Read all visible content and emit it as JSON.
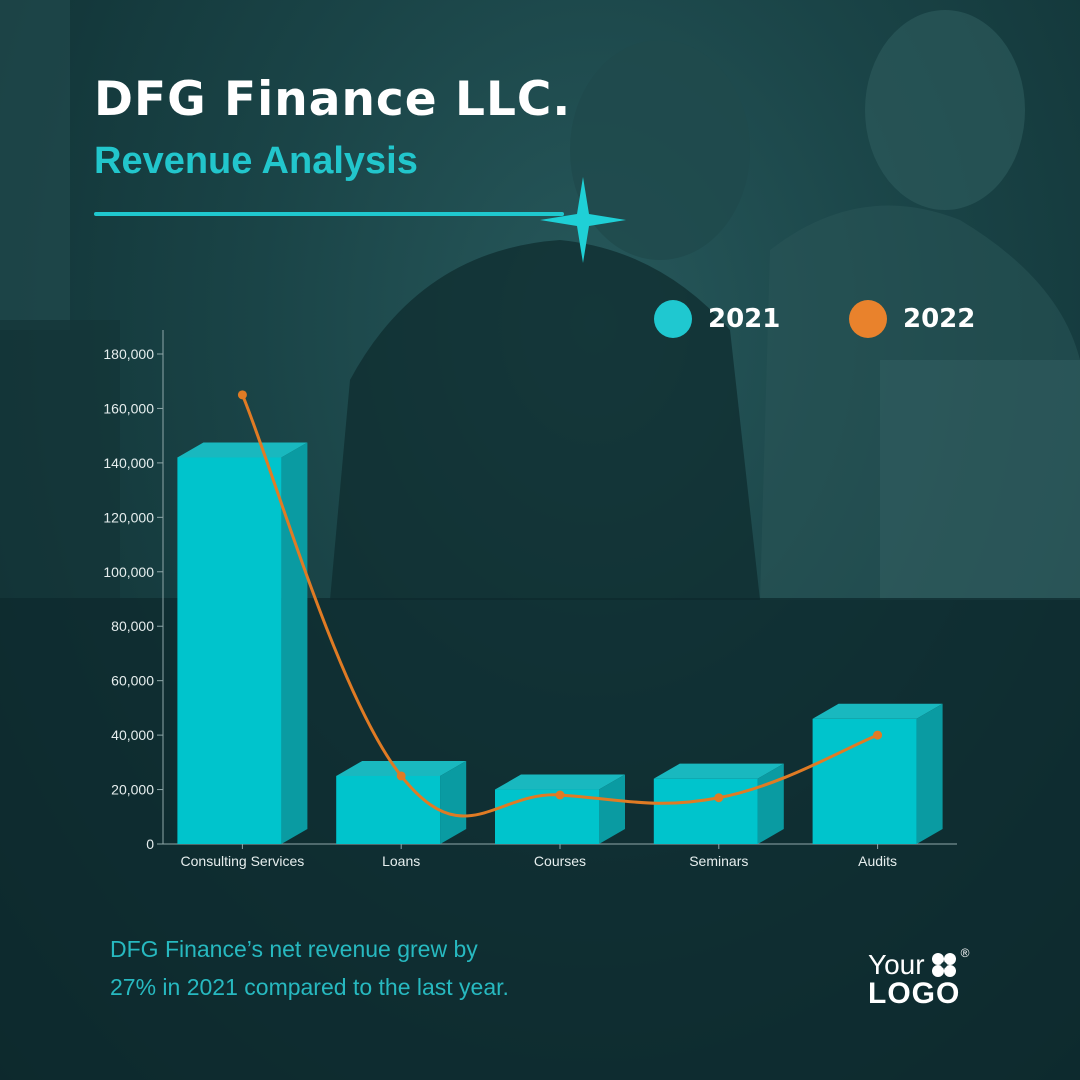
{
  "header": {
    "title": "DFG Finance LLC.",
    "subtitle": "Revenue Analysis"
  },
  "colors": {
    "accent": "#1fc8cf",
    "bar": "#00c4cc",
    "line": "#e07b24"
  },
  "legend": {
    "items": [
      {
        "label": "2021",
        "color": "#1fc8d0"
      },
      {
        "label": "2022",
        "color": "#e9822c"
      }
    ]
  },
  "chart_data": {
    "type": "bar",
    "categories": [
      "Consulting Services",
      "Loans",
      "Courses",
      "Seminars",
      "Audits"
    ],
    "series": [
      {
        "name": "2021",
        "type": "bar",
        "values": [
          142000,
          25000,
          20000,
          24000,
          46000
        ],
        "color": "#00c4cc"
      },
      {
        "name": "2022",
        "type": "line",
        "values": [
          165000,
          25000,
          18000,
          17000,
          40000
        ],
        "color": "#e07b24"
      }
    ],
    "ylim": [
      0,
      180000
    ],
    "yticks": [
      "0",
      "20,000",
      "40,000",
      "60,000",
      "80,000",
      "100,000",
      "120,000",
      "140,000",
      "160,000",
      "180,000"
    ],
    "grid": false,
    "legend_position": "top-right"
  },
  "footer": {
    "line1": "DFG Finance’s net revenue grew by",
    "line2": "27% in 2021 compared to the last year."
  },
  "logo": {
    "top": "Your",
    "bottom": "LOGO",
    "reg": "®"
  }
}
